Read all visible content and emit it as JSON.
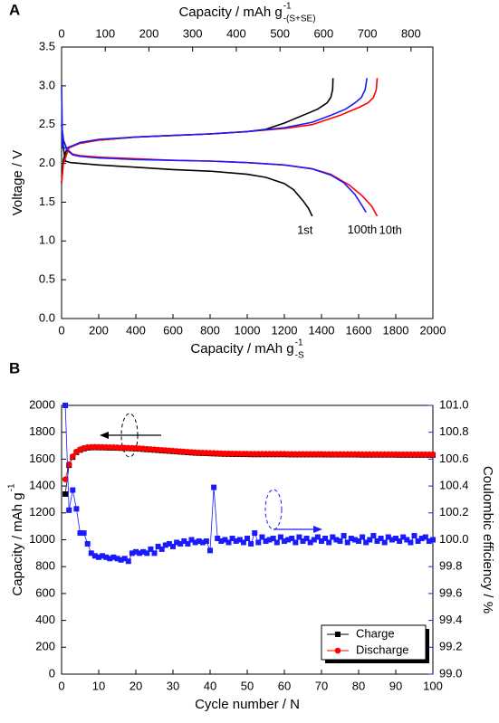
{
  "chart_data": [
    {
      "type": "line",
      "panel": "A",
      "xlabel": {
        "text": "Capacity / mAh g",
        "sup": "-1",
        "sub": "-S"
      },
      "x2label": {
        "text": "Capacity / mAh g",
        "sup": "-1",
        "sub": "-(S+SE)"
      },
      "ylabel": "Voltage / V",
      "xlim": [
        0,
        2000
      ],
      "xticks": [
        0,
        200,
        400,
        600,
        800,
        1000,
        1200,
        1400,
        1600,
        1800,
        2000
      ],
      "x2lim": [
        0,
        850
      ],
      "x2ticks": [
        0,
        100,
        200,
        300,
        400,
        500,
        600,
        700,
        800
      ],
      "ylim": [
        0,
        3.5
      ],
      "yticks": [
        {
          "value": 0,
          "label": "0.0"
        },
        0.5,
        {
          "value": 1,
          "label": "1.0"
        },
        1.5,
        {
          "value": 2,
          "label": "2.0"
        },
        2.5,
        {
          "value": 3,
          "label": "3.0"
        },
        3.5
      ],
      "series": [
        {
          "name": "1st",
          "color": "#000000",
          "curves": [
            {
              "x": [
                0,
                10,
                20,
                50,
                100,
                200,
                400,
                600,
                800,
                1000,
                1100,
                1200,
                1250,
                1300,
                1330,
                1350
              ],
              "values": [
                2.5,
                2.2,
                2.03,
                2.01,
                2.0,
                1.98,
                1.95,
                1.92,
                1.9,
                1.86,
                1.82,
                1.74,
                1.66,
                1.52,
                1.42,
                1.32
              ]
            },
            {
              "x": [
                0,
                10,
                30,
                100,
                200,
                400,
                600,
                800,
                1000,
                1100,
                1200,
                1300,
                1380,
                1430,
                1450,
                1460,
                1462
              ],
              "values": [
                1.75,
                2.05,
                2.2,
                2.26,
                2.3,
                2.34,
                2.36,
                2.38,
                2.41,
                2.44,
                2.52,
                2.62,
                2.7,
                2.78,
                2.85,
                2.95,
                3.1
              ]
            }
          ]
        },
        {
          "name": "10th",
          "color": "#ff0000",
          "curves": [
            {
              "x": [
                0,
                10,
                30,
                60,
                100,
                200,
                400,
                600,
                800,
                1000,
                1200,
                1350,
                1450,
                1550,
                1620,
                1670,
                1700
              ],
              "values": [
                2.5,
                2.3,
                2.18,
                2.12,
                2.1,
                2.08,
                2.06,
                2.04,
                2.03,
                2.01,
                1.98,
                1.93,
                1.86,
                1.72,
                1.58,
                1.45,
                1.32
              ]
            },
            {
              "x": [
                0,
                10,
                40,
                100,
                200,
                400,
                600,
                800,
                1000,
                1200,
                1350,
                1500,
                1600,
                1650,
                1680,
                1695,
                1700
              ],
              "values": [
                1.75,
                2.0,
                2.2,
                2.26,
                2.3,
                2.34,
                2.36,
                2.38,
                2.41,
                2.45,
                2.5,
                2.62,
                2.72,
                2.78,
                2.85,
                2.95,
                3.1
              ]
            }
          ]
        },
        {
          "name": "100th",
          "color": "#1a1aff",
          "curves": [
            {
              "x": [
                0,
                10,
                30,
                60,
                100,
                200,
                400,
                600,
                800,
                1000,
                1200,
                1350,
                1450,
                1520,
                1580,
                1620,
                1640
              ],
              "values": [
                2.5,
                2.3,
                2.17,
                2.11,
                2.09,
                2.07,
                2.05,
                2.04,
                2.03,
                2.01,
                1.98,
                1.93,
                1.85,
                1.75,
                1.6,
                1.45,
                1.37
              ]
            },
            {
              "x": [
                0,
                5,
                30,
                100,
                200,
                400,
                600,
                800,
                1000,
                1200,
                1350,
                1450,
                1530,
                1580,
                1615,
                1635,
                1645
              ],
              "values": [
                3.0,
                2.2,
                2.2,
                2.27,
                2.31,
                2.34,
                2.36,
                2.38,
                2.41,
                2.46,
                2.53,
                2.62,
                2.7,
                2.78,
                2.85,
                2.95,
                3.1
              ]
            }
          ]
        }
      ]
    },
    {
      "type": "line",
      "panel": "B",
      "xlabel": "Cycle number / N",
      "ylabel": {
        "text": "Capacity / mAh g",
        "sup": "-1"
      },
      "y2label": "Coulombic efficiency / %",
      "xlim": [
        0,
        100
      ],
      "xticks": [
        0,
        10,
        20,
        30,
        40,
        50,
        60,
        70,
        80,
        90,
        100
      ],
      "ylim": [
        0,
        2000
      ],
      "yticks": [
        0,
        200,
        400,
        600,
        800,
        1000,
        1200,
        1400,
        1600,
        1800,
        2000
      ],
      "y2lim": [
        99,
        101
      ],
      "y2ticks": [
        {
          "value": 99,
          "label": "99.0"
        },
        99.2,
        99.4,
        99.6,
        99.8,
        {
          "value": 100,
          "label": "100.0"
        },
        100.2,
        100.4,
        100.6,
        100.8,
        {
          "value": 101,
          "label": "101.0"
        }
      ],
      "legend": "lower right",
      "x": [
        1,
        2,
        3,
        4,
        5,
        6,
        7,
        8,
        9,
        10,
        11,
        12,
        13,
        14,
        15,
        16,
        17,
        18,
        19,
        20,
        21,
        22,
        23,
        24,
        25,
        26,
        27,
        28,
        29,
        30,
        31,
        32,
        33,
        34,
        35,
        36,
        37,
        38,
        39,
        40,
        41,
        42,
        43,
        44,
        45,
        46,
        47,
        48,
        49,
        50,
        51,
        52,
        53,
        54,
        55,
        56,
        57,
        58,
        59,
        60,
        61,
        62,
        63,
        64,
        65,
        66,
        67,
        68,
        69,
        70,
        71,
        72,
        73,
        74,
        75,
        76,
        77,
        78,
        79,
        80,
        81,
        82,
        83,
        84,
        85,
        86,
        87,
        88,
        89,
        90,
        91,
        92,
        93,
        94,
        95,
        96,
        97,
        98,
        99,
        100
      ],
      "series": [
        {
          "name": "Charge",
          "color": "#000000",
          "marker": "square",
          "values": [
            1340,
            1555,
            1615,
            1651,
            1668,
            1678,
            1684,
            1686,
            1687,
            1686,
            1686,
            1685,
            1684,
            1684,
            1683,
            1682,
            1681,
            1680,
            1679,
            1678,
            1676,
            1674,
            1672,
            1670,
            1668,
            1666,
            1664,
            1662,
            1660,
            1658,
            1656,
            1654,
            1652,
            1650,
            1648,
            1646,
            1645,
            1644,
            1643,
            1642,
            1641,
            1640,
            1639,
            1638,
            1638,
            1637,
            1637,
            1636,
            1636,
            1636,
            1635,
            1635,
            1635,
            1635,
            1635,
            1635,
            1635,
            1635,
            1635,
            1635,
            1634,
            1634,
            1634,
            1634,
            1634,
            1634,
            1634,
            1634,
            1634,
            1634,
            1633,
            1633,
            1633,
            1633,
            1633,
            1633,
            1633,
            1633,
            1633,
            1633,
            1632,
            1632,
            1632,
            1632,
            1632,
            1632,
            1632,
            1632,
            1632,
            1632,
            1631,
            1631,
            1631,
            1631,
            1631,
            1631,
            1631,
            1631,
            1631,
            1631
          ]
        },
        {
          "name": "Discharge",
          "color": "#ff0000",
          "marker": "circle",
          "values": [
            1450,
            1560,
            1620,
            1655,
            1672,
            1682,
            1688,
            1690,
            1691,
            1690,
            1690,
            1689,
            1688,
            1688,
            1687,
            1686,
            1685,
            1684,
            1683,
            1682,
            1680,
            1678,
            1676,
            1674,
            1672,
            1670,
            1668,
            1666,
            1664,
            1662,
            1660,
            1658,
            1656,
            1654,
            1652,
            1650,
            1649,
            1648,
            1647,
            1646,
            1645,
            1644,
            1643,
            1642,
            1642,
            1641,
            1641,
            1640,
            1640,
            1640,
            1639,
            1639,
            1639,
            1639,
            1639,
            1639,
            1639,
            1639,
            1639,
            1639,
            1638,
            1638,
            1638,
            1638,
            1638,
            1638,
            1638,
            1638,
            1638,
            1638,
            1637,
            1637,
            1637,
            1637,
            1637,
            1637,
            1637,
            1637,
            1637,
            1637,
            1636,
            1636,
            1636,
            1636,
            1636,
            1636,
            1636,
            1636,
            1636,
            1636,
            1635,
            1635,
            1635,
            1635,
            1635,
            1635,
            1635,
            1635,
            1635,
            1635
          ]
        },
        {
          "color": "#1a1aff",
          "marker": "square",
          "axis": "y2",
          "values": [
            101.0,
            100.22,
            100.37,
            100.23,
            100.05,
            100.05,
            99.97,
            99.9,
            99.88,
            99.87,
            99.88,
            99.87,
            99.86,
            99.87,
            99.86,
            99.85,
            99.86,
            99.84,
            99.9,
            99.91,
            99.9,
            99.91,
            99.9,
            99.93,
            99.9,
            99.95,
            99.93,
            99.96,
            99.97,
            99.95,
            99.98,
            99.97,
            99.99,
            99.97,
            100.0,
            99.98,
            99.99,
            99.98,
            99.99,
            99.92,
            100.39,
            100.01,
            99.99,
            100.0,
            99.98,
            100.01,
            99.99,
            100.0,
            99.98,
            100.01,
            99.97,
            100.05,
            99.98,
            100.02,
            99.99,
            100.0,
            100.01,
            99.98,
            100.02,
            99.99,
            100.0,
            100.01,
            99.98,
            100.02,
            99.99,
            100.01,
            99.98,
            100.0,
            100.02,
            99.99,
            100.01,
            99.98,
            100.02,
            100.0,
            99.99,
            100.03,
            99.98,
            100.01,
            100.0,
            99.99,
            100.02,
            99.98,
            100.0,
            100.03,
            99.99,
            100.01,
            99.98,
            100.02,
            100.0,
            100.01,
            99.99,
            100.02,
            100.0,
            99.98,
            100.03,
            99.99,
            100.01,
            100.02,
            99.99,
            100.0
          ]
        }
      ]
    }
  ]
}
